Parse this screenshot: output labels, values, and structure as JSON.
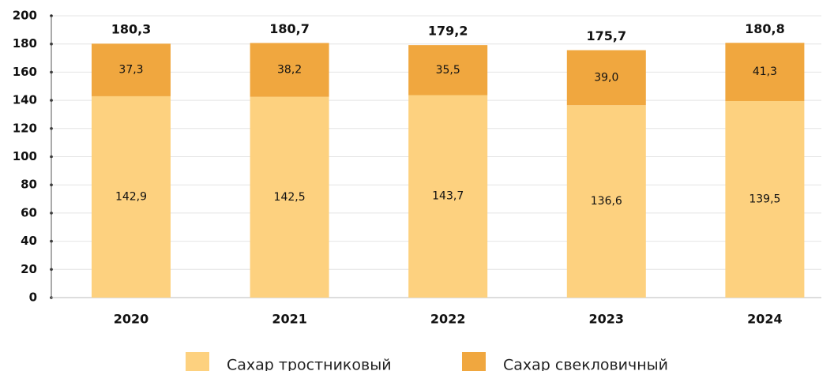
{
  "chart_data": {
    "type": "stacked_bar",
    "categories": [
      "2020",
      "2021",
      "2022",
      "2023",
      "2024"
    ],
    "series": [
      {
        "name": "Сахар тростниковый",
        "color": "#fdd17f",
        "values": [
          142.9,
          142.5,
          143.7,
          136.6,
          139.5
        ],
        "value_labels": [
          "142,9",
          "142,5",
          "143,7",
          "136,6",
          "139,5"
        ]
      },
      {
        "name": "Сахар свекловичный",
        "color": "#f0a73f",
        "values": [
          37.3,
          38.2,
          35.5,
          39.0,
          41.3
        ],
        "value_labels": [
          "37,3",
          "38,2",
          "35,5",
          "39,0",
          "41,3"
        ]
      }
    ],
    "totals": [
      180.3,
      180.7,
      179.2,
      175.7,
      180.8
    ],
    "total_labels": [
      "180,3",
      "180,7",
      "179,2",
      "175,7",
      "180,8"
    ],
    "ylim": [
      0,
      200
    ],
    "yticks": [
      0,
      20,
      40,
      60,
      80,
      100,
      120,
      140,
      160,
      180,
      200
    ],
    "grid": true
  }
}
